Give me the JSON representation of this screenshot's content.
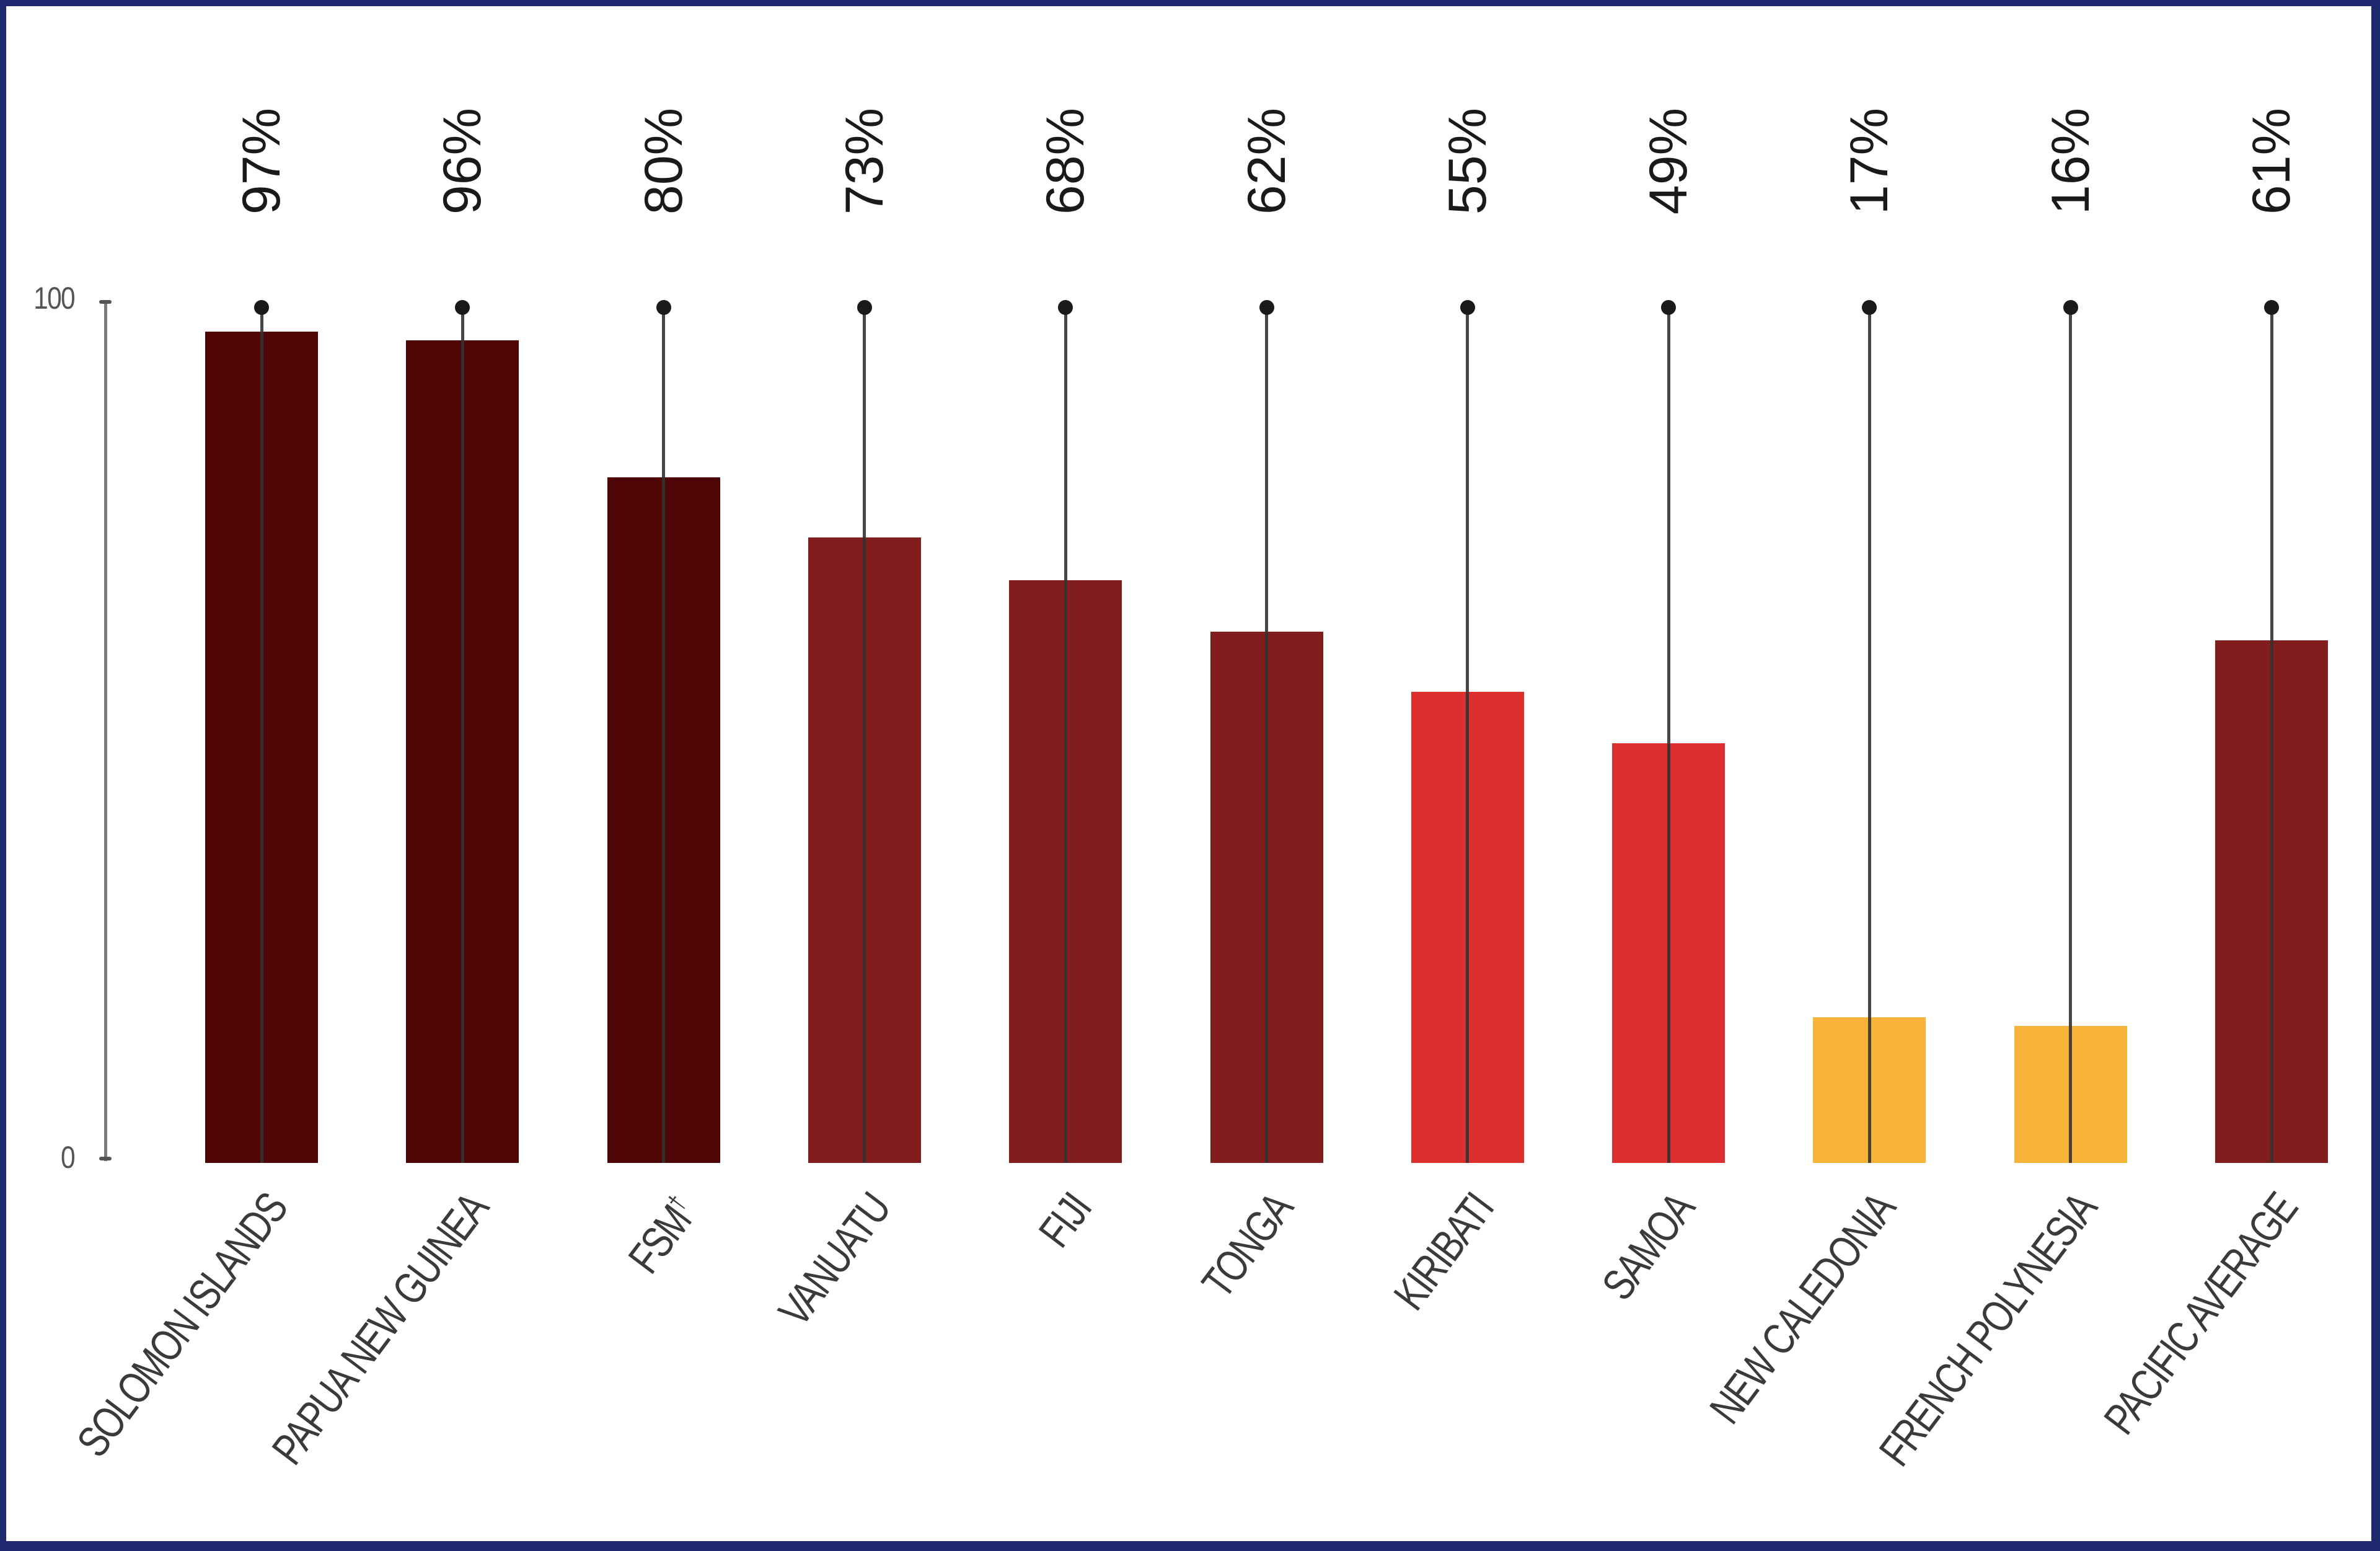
{
  "chart_data": {
    "type": "bar",
    "title": "",
    "xlabel": "",
    "ylabel": "",
    "ylim": [
      0,
      100
    ],
    "yticks": [
      "0",
      "100"
    ],
    "grid": false,
    "legend": null,
    "categories": [
      "SOLOMON ISLANDS",
      "PAPUA NEW GUINEA",
      "FSM†",
      "VANUATU",
      "FIJI",
      "TONGA",
      "KIRIBATI",
      "SAMOA",
      "NEW CALEDONIA",
      "FRENCH POLYNESIA",
      "PACIFIC AVERAGE"
    ],
    "values": [
      97,
      96,
      80,
      73,
      68,
      62,
      55,
      49,
      17,
      16,
      61
    ],
    "value_labels": [
      "97%",
      "96%",
      "80%",
      "73%",
      "68%",
      "62%",
      "55%",
      "49%",
      "17%",
      "16%",
      "61%"
    ],
    "bar_colors": [
      "#4d0505",
      "#4d0505",
      "#4d0505",
      "#821d1d",
      "#821d1d",
      "#821d1d",
      "#dc2f2f",
      "#dc2f2f",
      "#f8b339",
      "#f8b339",
      "#821d1d"
    ],
    "annotations": [
      "Each bar has a vertical line with a dot at the 100 level"
    ]
  },
  "axis": {
    "top_label": "100",
    "bottom_label": "0"
  },
  "colors": {
    "frame_border": "#1f2a6e",
    "very_high": "#4d0505",
    "high": "#821d1d",
    "medium": "#dc2f2f",
    "low": "#f8b339",
    "stem": "#333333",
    "text": "#1a1a1a"
  }
}
